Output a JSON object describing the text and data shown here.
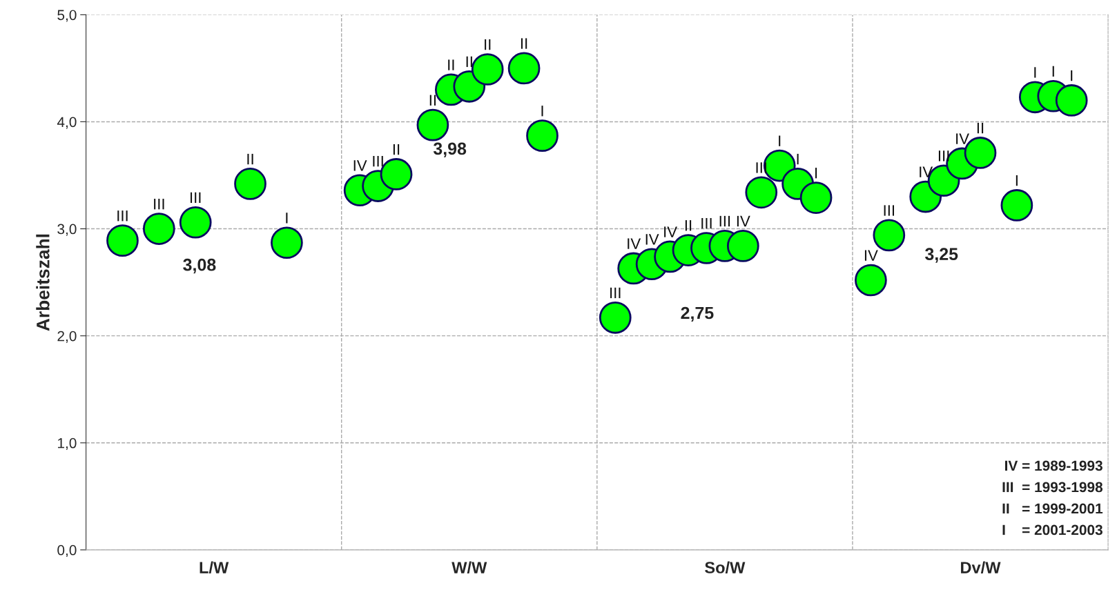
{
  "chart_data": {
    "type": "scatter",
    "ylabel": "Arbeitszahl",
    "categories": [
      null,
      null,
      null,
      null,
      null,
      null,
      null,
      "L/W",
      null,
      null,
      null,
      null,
      null,
      null,
      null,
      null,
      null,
      null,
      null,
      null,
      null,
      "W/W",
      null,
      null,
      null,
      null,
      null,
      null,
      null,
      null,
      null,
      null,
      null,
      null,
      null,
      "So/W",
      null,
      null,
      null,
      null,
      null,
      null,
      null,
      null,
      null,
      null,
      null,
      null,
      null,
      "Dv/W",
      null,
      null,
      null,
      null,
      null,
      null,
      null
    ],
    "ylim": [
      0,
      5
    ],
    "yticks": [
      {
        "value": 0,
        "label": "0,0"
      },
      {
        "value": 1,
        "label": "1,0"
      },
      {
        "value": 2,
        "label": "2,0"
      },
      {
        "value": 3,
        "label": "3,0"
      },
      {
        "value": 4,
        "label": "4,0"
      },
      {
        "value": 5,
        "label": "5,0"
      }
    ],
    "grid": true,
    "marker": "circle",
    "series": [
      {
        "color": "#00ff00",
        "values": [
          null,
          null,
          2.89,
          null,
          3.0,
          null,
          3.06,
          null,
          null,
          3.42,
          null,
          2.87,
          null,
          null,
          null,
          3.36,
          3.4,
          3.51,
          null,
          3.97,
          4.3,
          4.33,
          4.49,
          null,
          4.5,
          3.87,
          null,
          null,
          null,
          2.17,
          2.63,
          2.67,
          2.74,
          2.8,
          2.82,
          2.84,
          2.84,
          3.34,
          3.59,
          3.42,
          3.29,
          null,
          null,
          2.52,
          2.94,
          null,
          3.3,
          3.45,
          3.61,
          3.71,
          null,
          3.22,
          4.23,
          4.24,
          4.2,
          null,
          null
        ],
        "value_labels": [
          null,
          null,
          "III",
          null,
          "III",
          null,
          "III",
          null,
          null,
          "II",
          null,
          "I",
          null,
          null,
          null,
          "IV",
          "III",
          "II",
          null,
          "II",
          "II",
          "II",
          "II",
          null,
          "II",
          "I",
          null,
          null,
          null,
          "III",
          "IV",
          "IV",
          "IV",
          "II",
          "III",
          "III",
          "IV",
          "III",
          "I",
          "I",
          "I",
          null,
          null,
          "IV",
          "III",
          null,
          "IV",
          "III",
          "IV",
          "II",
          null,
          "I",
          "I",
          "I",
          "I",
          null,
          null
        ]
      }
    ],
    "annotations": [
      "3,08",
      "3,98",
      "2,75",
      "3,25",
      "IV = 1989-1993",
      "III  = 1993-1998",
      "II   = 1999-2001",
      "I    = 2001-2003"
    ]
  }
}
